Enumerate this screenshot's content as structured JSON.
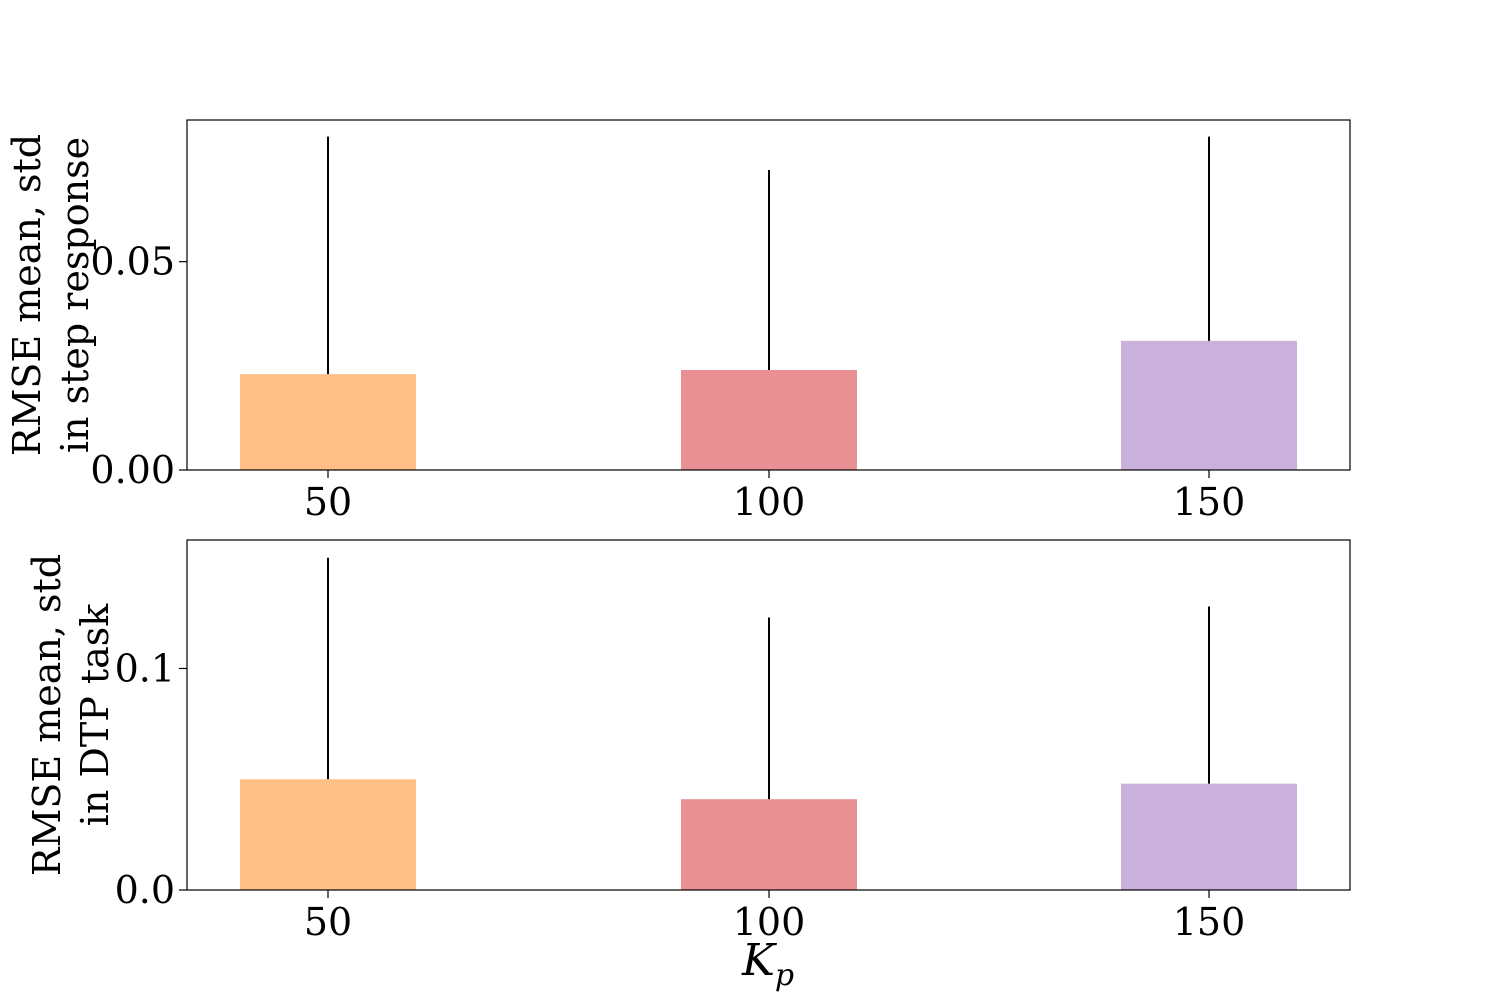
{
  "chart_data": [
    {
      "type": "bar",
      "categories": [
        "50",
        "100",
        "150"
      ],
      "values": [
        0.023,
        0.024,
        0.031
      ],
      "error_top": [
        0.08,
        0.072,
        0.08
      ],
      "colors": [
        "#ffbf86",
        "#e89093",
        "#c9b1dc"
      ],
      "ylabel_lines": [
        "RMSE mean, std",
        "in step response"
      ],
      "yticks": [
        "0.00",
        "0.05"
      ],
      "ytick_values": [
        0,
        0.05
      ],
      "ylim": [
        0,
        0.084
      ],
      "grid": false
    },
    {
      "type": "bar",
      "categories": [
        "50",
        "100",
        "150"
      ],
      "values": [
        0.05,
        0.041,
        0.048
      ],
      "error_top": [
        0.15,
        0.123,
        0.128
      ],
      "colors": [
        "#ffbf86",
        "#e89093",
        "#c9b1dc"
      ],
      "ylabel_lines": [
        "RMSE mean, std",
        "in DTP task"
      ],
      "yticks": [
        "0.0",
        "0.1"
      ],
      "ytick_values": [
        0,
        0.1
      ],
      "ylim": [
        0,
        0.158
      ],
      "grid": false
    }
  ],
  "xlabel": {
    "main": "K",
    "sub": "p"
  }
}
